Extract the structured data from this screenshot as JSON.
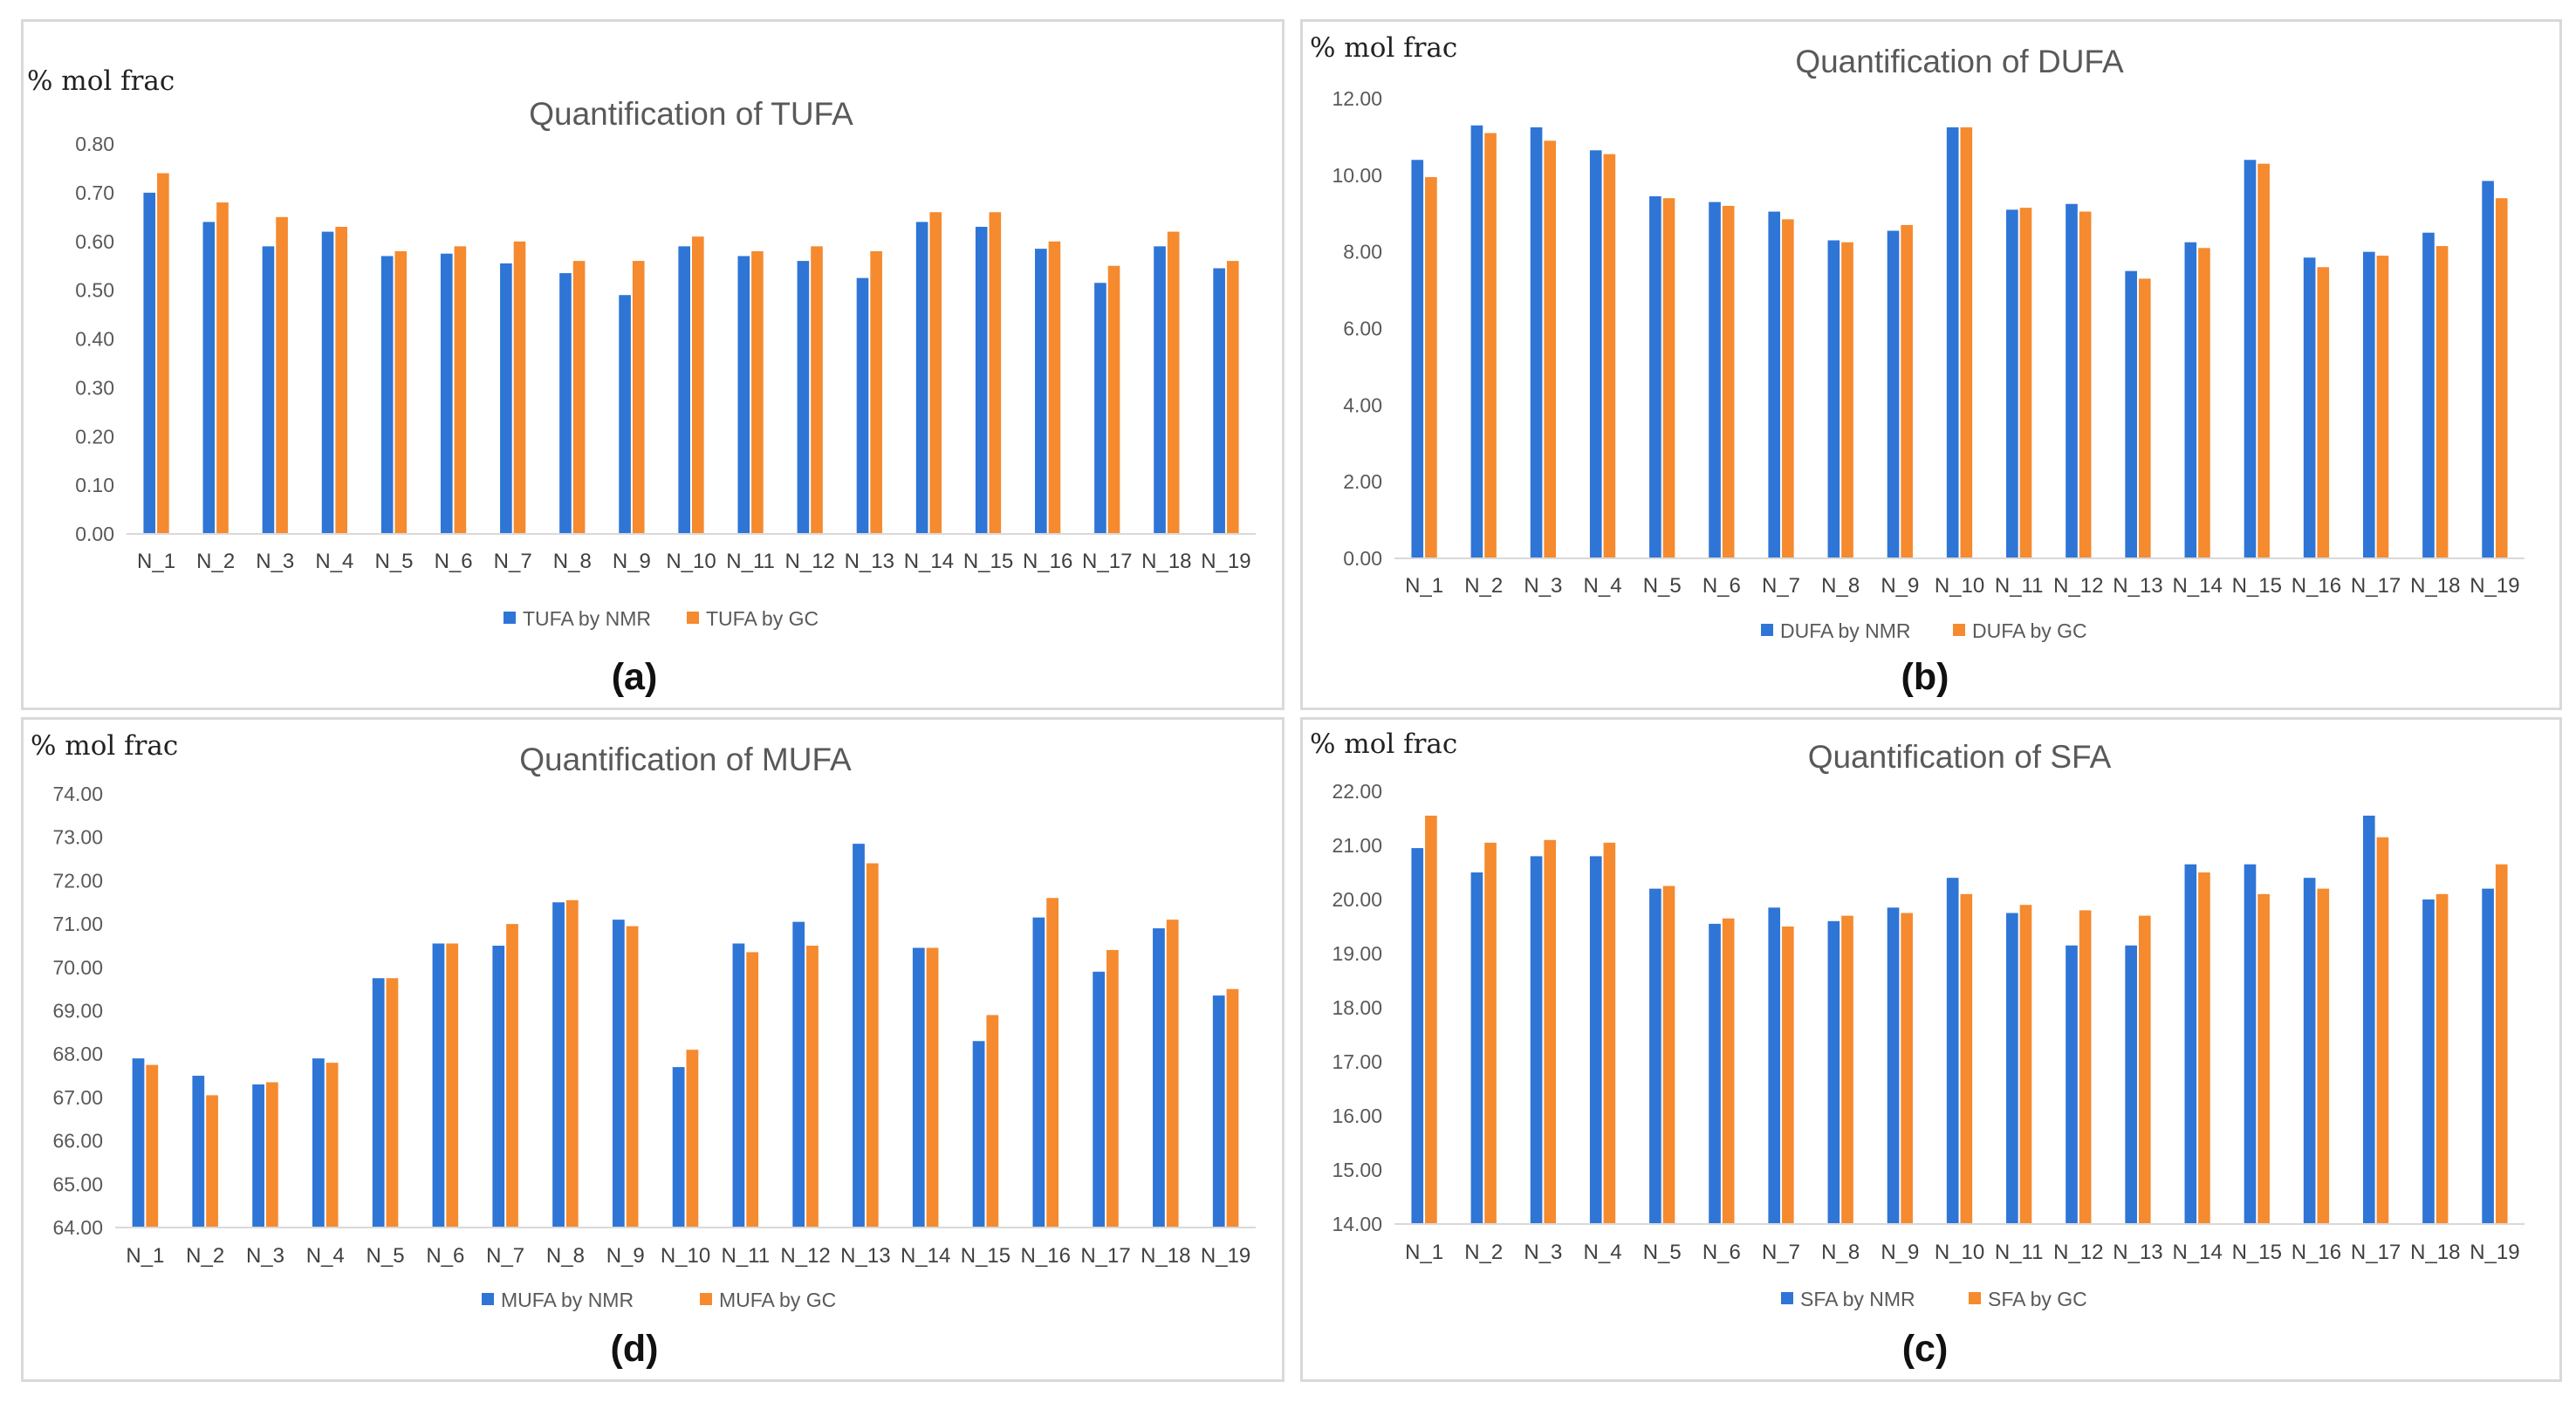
{
  "colors": {
    "nmr": "#2e75d6",
    "gc": "#f58a2f",
    "axis": "#d9d9d9"
  },
  "chart_data": [
    {
      "type": "bar",
      "panel_label": "(a)",
      "title": "Quantification of TUFA",
      "ylabel": "% mol frac",
      "xlabel": "",
      "ylim": [
        0,
        0.8
      ],
      "yticks": [
        "0.00",
        "0.10",
        "0.20",
        "0.30",
        "0.40",
        "0.50",
        "0.60",
        "0.70",
        "0.80"
      ],
      "categories": [
        "N_1",
        "N_2",
        "N_3",
        "N_4",
        "N_5",
        "N_6",
        "N_7",
        "N_8",
        "N_9",
        "N_10",
        "N_11",
        "N_12",
        "N_13",
        "N_14",
        "N_15",
        "N_16",
        "N_17",
        "N_18",
        "N_19"
      ],
      "series": [
        {
          "name": "TUFA by NMR",
          "values": [
            0.7,
            0.64,
            0.59,
            0.62,
            0.57,
            0.575,
            0.555,
            0.535,
            0.49,
            0.59,
            0.57,
            0.56,
            0.525,
            0.64,
            0.63,
            0.585,
            0.515,
            0.59,
            0.545
          ]
        },
        {
          "name": "TUFA by GC",
          "values": [
            0.74,
            0.68,
            0.65,
            0.63,
            0.58,
            0.59,
            0.6,
            0.56,
            0.56,
            0.61,
            0.58,
            0.59,
            0.58,
            0.66,
            0.66,
            0.6,
            0.55,
            0.62,
            0.56
          ]
        }
      ],
      "legend": "bottom"
    },
    {
      "type": "bar",
      "panel_label": "(b)",
      "title": "Quantification of DUFA",
      "ylabel": "% mol frac",
      "xlabel": "",
      "ylim": [
        0,
        12
      ],
      "yticks": [
        "0.00",
        "2.00",
        "4.00",
        "6.00",
        "8.00",
        "10.00",
        "12.00"
      ],
      "categories": [
        "N_1",
        "N_2",
        "N_3",
        "N_4",
        "N_5",
        "N_6",
        "N_7",
        "N_8",
        "N_9",
        "N_10",
        "N_11",
        "N_12",
        "N_13",
        "N_14",
        "N_15",
        "N_16",
        "N_17",
        "N_18",
        "N_19"
      ],
      "series": [
        {
          "name": "DUFA by NMR",
          "values": [
            10.4,
            11.3,
            11.25,
            10.65,
            9.45,
            9.3,
            9.05,
            8.3,
            8.55,
            11.25,
            9.1,
            9.25,
            7.5,
            8.25,
            10.4,
            7.85,
            8.0,
            8.5,
            9.85
          ]
        },
        {
          "name": "DUFA by GC",
          "values": [
            9.95,
            11.1,
            10.9,
            10.55,
            9.4,
            9.2,
            8.85,
            8.25,
            8.7,
            11.25,
            9.15,
            9.05,
            7.3,
            8.1,
            10.3,
            7.6,
            7.9,
            8.15,
            9.4
          ]
        }
      ],
      "legend": "bottom"
    },
    {
      "type": "bar",
      "panel_label": "(d)",
      "title": "Quantification of MUFA",
      "ylabel": "% mol frac",
      "xlabel": "",
      "ylim": [
        64,
        74
      ],
      "yticks": [
        "64.00",
        "65.00",
        "66.00",
        "67.00",
        "68.00",
        "69.00",
        "70.00",
        "71.00",
        "72.00",
        "73.00",
        "74.00"
      ],
      "categories": [
        "N_1",
        "N_2",
        "N_3",
        "N_4",
        "N_5",
        "N_6",
        "N_7",
        "N_8",
        "N_9",
        "N_10",
        "N_11",
        "N_12",
        "N_13",
        "N_14",
        "N_15",
        "N_16",
        "N_17",
        "N_18",
        "N_19"
      ],
      "series": [
        {
          "name": "MUFA by NMR",
          "values": [
            67.9,
            67.5,
            67.3,
            67.9,
            69.75,
            70.55,
            70.5,
            71.5,
            71.1,
            67.7,
            70.55,
            71.05,
            72.85,
            70.45,
            68.3,
            71.15,
            69.9,
            70.9,
            69.35
          ]
        },
        {
          "name": "MUFA by GC",
          "values": [
            67.75,
            67.05,
            67.35,
            67.8,
            69.75,
            70.55,
            71.0,
            71.55,
            70.95,
            68.1,
            70.35,
            70.5,
            72.4,
            70.45,
            68.9,
            71.6,
            70.4,
            71.1,
            69.5
          ]
        }
      ],
      "legend": "bottom"
    },
    {
      "type": "bar",
      "panel_label": "(c)",
      "title": "Quantification of SFA",
      "ylabel": "% mol frac",
      "xlabel": "",
      "ylim": [
        14,
        22
      ],
      "yticks": [
        "14.00",
        "15.00",
        "16.00",
        "17.00",
        "18.00",
        "19.00",
        "20.00",
        "21.00",
        "22.00"
      ],
      "categories": [
        "N_1",
        "N_2",
        "N_3",
        "N_4",
        "N_5",
        "N_6",
        "N_7",
        "N_8",
        "N_9",
        "N_10",
        "N_11",
        "N_12",
        "N_13",
        "N_14",
        "N_15",
        "N_16",
        "N_17",
        "N_18",
        "N_19"
      ],
      "series": [
        {
          "name": "SFA by NMR",
          "values": [
            20.95,
            20.5,
            20.8,
            20.8,
            20.2,
            19.55,
            19.85,
            19.6,
            19.85,
            20.4,
            19.75,
            19.15,
            19.15,
            20.65,
            20.65,
            20.4,
            21.55,
            20.0,
            20.2
          ]
        },
        {
          "name": "SFA by GC",
          "values": [
            21.55,
            21.05,
            21.1,
            21.05,
            20.25,
            19.65,
            19.5,
            19.7,
            19.75,
            20.1,
            19.9,
            19.8,
            19.7,
            20.5,
            20.1,
            20.2,
            21.15,
            20.1,
            20.65
          ]
        }
      ],
      "legend": "bottom"
    }
  ]
}
